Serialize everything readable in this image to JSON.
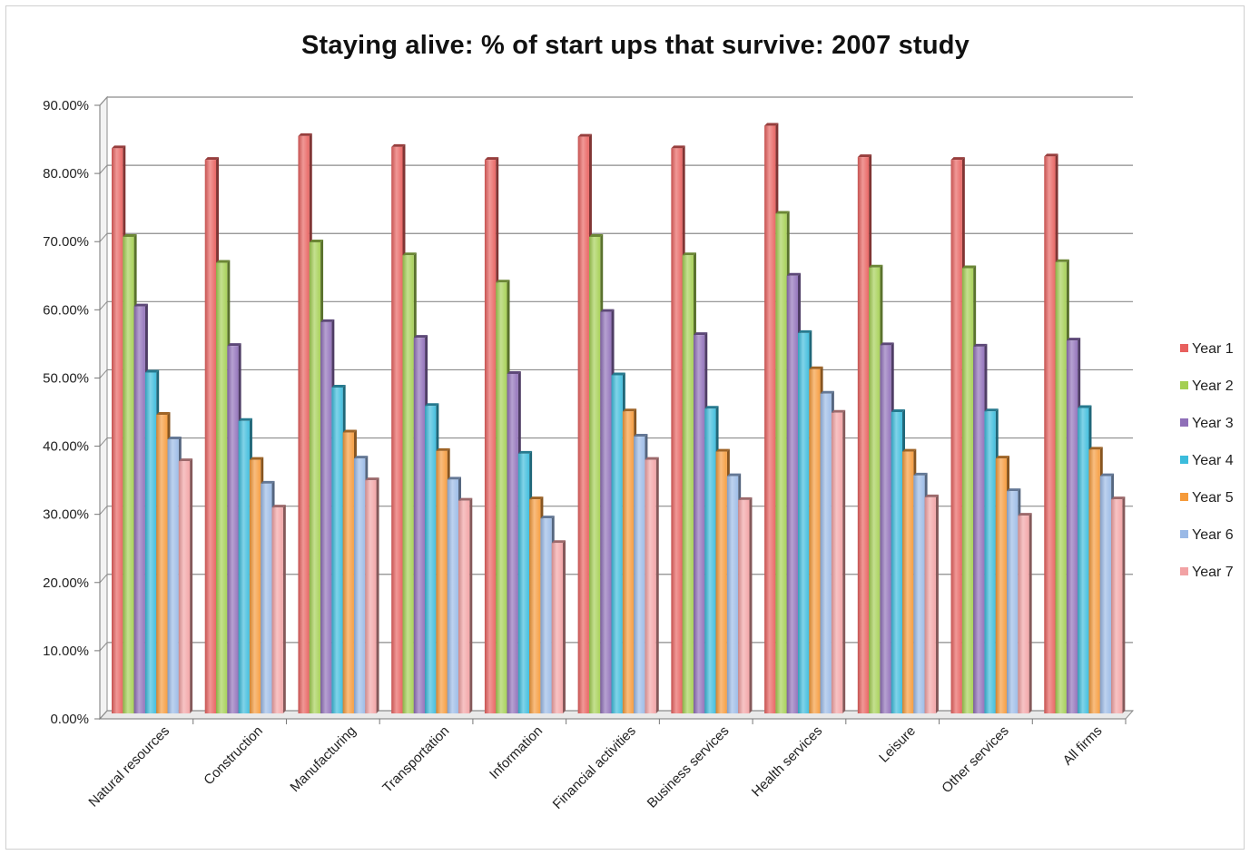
{
  "chart_data": {
    "type": "bar",
    "title": "Staying alive: % of start ups that survive: 2007 study",
    "xlabel": "",
    "ylabel": "",
    "ylim": [
      0,
      90
    ],
    "yticks": [
      "0.00%",
      "10.00%",
      "20.00%",
      "30.00%",
      "40.00%",
      "50.00%",
      "60.00%",
      "70.00%",
      "80.00%",
      "90.00%"
    ],
    "grid": true,
    "legend_position": "right",
    "categories": [
      "Natural resources",
      "Construction",
      "Manufacturing",
      "Transportation",
      "Information",
      "Financial activities",
      "Business services",
      "Health services",
      "Leisure",
      "Other services",
      "All firms"
    ],
    "series": [
      {
        "name": "Year 1",
        "color": "#e8605e",
        "values": [
          82.5,
          80.8,
          84.3,
          82.7,
          80.8,
          84.2,
          82.5,
          85.8,
          81.2,
          80.8,
          81.3
        ]
      },
      {
        "name": "Year 2",
        "color": "#a4cf52",
        "values": [
          69.5,
          65.7,
          68.7,
          66.8,
          62.8,
          69.5,
          66.8,
          72.9,
          65.0,
          64.9,
          65.8
        ]
      },
      {
        "name": "Year 3",
        "color": "#8f6fb8",
        "values": [
          59.3,
          53.5,
          57.0,
          54.7,
          49.4,
          58.5,
          55.1,
          63.8,
          53.6,
          53.4,
          54.3
        ]
      },
      {
        "name": "Year 4",
        "color": "#3bbcdc",
        "values": [
          49.6,
          42.5,
          47.4,
          44.7,
          37.7,
          49.2,
          44.3,
          55.4,
          43.8,
          43.9,
          44.4
        ]
      },
      {
        "name": "Year 5",
        "color": "#f59a3a",
        "values": [
          43.4,
          36.8,
          40.8,
          38.1,
          31.0,
          43.9,
          38.0,
          50.1,
          38.0,
          37.0,
          38.3
        ]
      },
      {
        "name": "Year 6",
        "color": "#9ab9e6",
        "values": [
          39.8,
          33.3,
          37.0,
          33.9,
          28.2,
          40.2,
          34.4,
          46.5,
          34.5,
          32.2,
          34.4
        ]
      },
      {
        "name": "Year 7",
        "color": "#f2a2a4",
        "values": [
          36.6,
          29.8,
          33.8,
          30.8,
          24.6,
          36.8,
          30.9,
          43.7,
          31.3,
          28.6,
          31.0
        ]
      }
    ]
  }
}
